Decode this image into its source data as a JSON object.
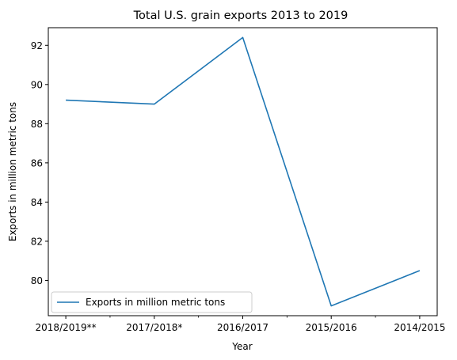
{
  "chart_data": {
    "type": "line",
    "title": "Total U.S. grain exports 2013 to 2019",
    "xlabel": "Year",
    "ylabel": "Exports in million metric tons",
    "categories": [
      "2018/2019**",
      "2017/2018*",
      "2016/2017",
      "2015/2016",
      "2014/2015"
    ],
    "series": [
      {
        "name": "Exports in million metric tons",
        "values": [
          89.2,
          89.0,
          92.4,
          78.7,
          80.5
        ],
        "color": "#1f77b4"
      }
    ],
    "ylim": [
      78.2,
      92.9
    ],
    "yticks": [
      80,
      82,
      84,
      86,
      88,
      90,
      92
    ],
    "grid": false,
    "legend_position": "lower-left"
  }
}
